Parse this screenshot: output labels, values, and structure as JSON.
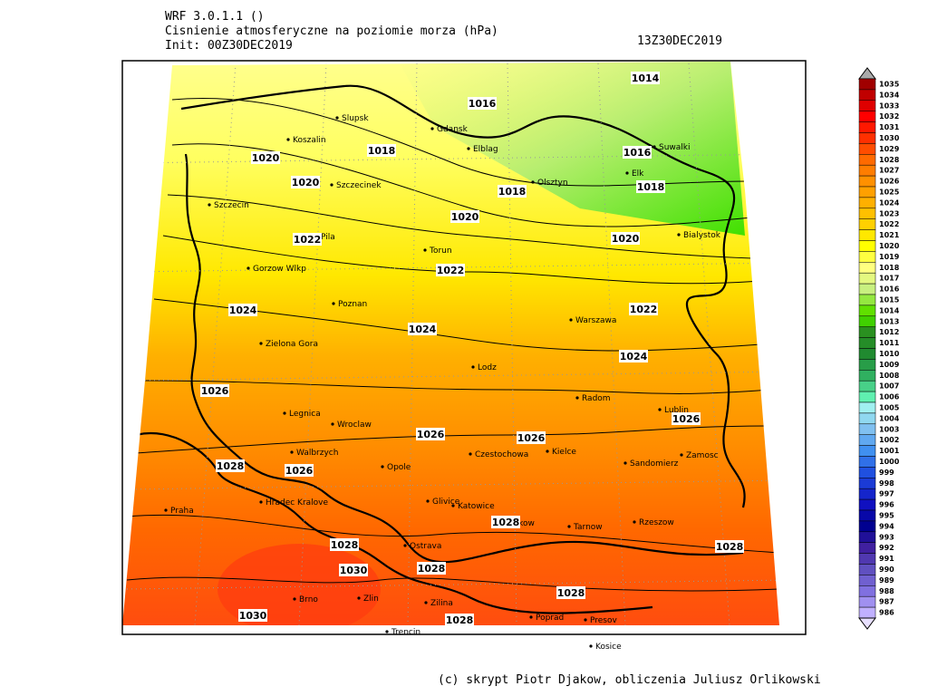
{
  "header": {
    "model": "WRF 3.0.1.1 ()",
    "title": "Cisnienie atmosferyczne na poziomie morza (hPa)",
    "init": "Init: 00Z30DEC2019",
    "valid": "13Z30DEC2019"
  },
  "colorbar": {
    "levels": [
      1035,
      1034,
      1033,
      1032,
      1031,
      1030,
      1029,
      1028,
      1027,
      1026,
      1025,
      1024,
      1023,
      1022,
      1021,
      1020,
      1019,
      1018,
      1017,
      1016,
      1015,
      1014,
      1013,
      1012,
      1011,
      1010,
      1009,
      1008,
      1007,
      1006,
      1005,
      1004,
      1003,
      1002,
      1001,
      1000,
      999,
      998,
      997,
      996,
      995,
      994,
      993,
      992,
      991,
      990,
      989,
      988,
      987,
      986
    ]
  },
  "cities": [
    "Slupsk",
    "Koszalin",
    "Gdansk",
    "Elblag",
    "Olsztyn",
    "Suwalki",
    "Elk",
    "Szczecinek",
    "Szczecin",
    "Bialystok",
    "Pila",
    "Torun",
    "Gorzow Wlkp",
    "Poznan",
    "Warszawa",
    "Zielona Gora",
    "Lodz",
    "Radom",
    "Lublin",
    "Legnica",
    "Wroclaw",
    "Walbrzych",
    "Czestochowa",
    "Kielce",
    "Sandomierz",
    "Zamosc",
    "Opole",
    "Hradec Kralove",
    "Glivice",
    "Katowice",
    "Praha",
    "Krakow",
    "Tarnow",
    "Rzeszow",
    "Ostrava",
    "Brno",
    "Zlin",
    "Zilina",
    "Poprad",
    "Presov",
    "Trencin",
    "Kosice"
  ],
  "isobar_labels": [
    "1014",
    "1016",
    "1018",
    "1020",
    "1020",
    "1018",
    "1016",
    "1018",
    "1020",
    "1022",
    "1020",
    "1022",
    "1024",
    "1022",
    "1024",
    "1024",
    "1026",
    "1026",
    "1026",
    "1026",
    "1028",
    "1026",
    "1028",
    "1028",
    "1028",
    "1030",
    "1028",
    "1028",
    "1030",
    "1028"
  ],
  "footer": "(c) skrypt Piotr Djakow, obliczenia Juliusz Orlikowski"
}
